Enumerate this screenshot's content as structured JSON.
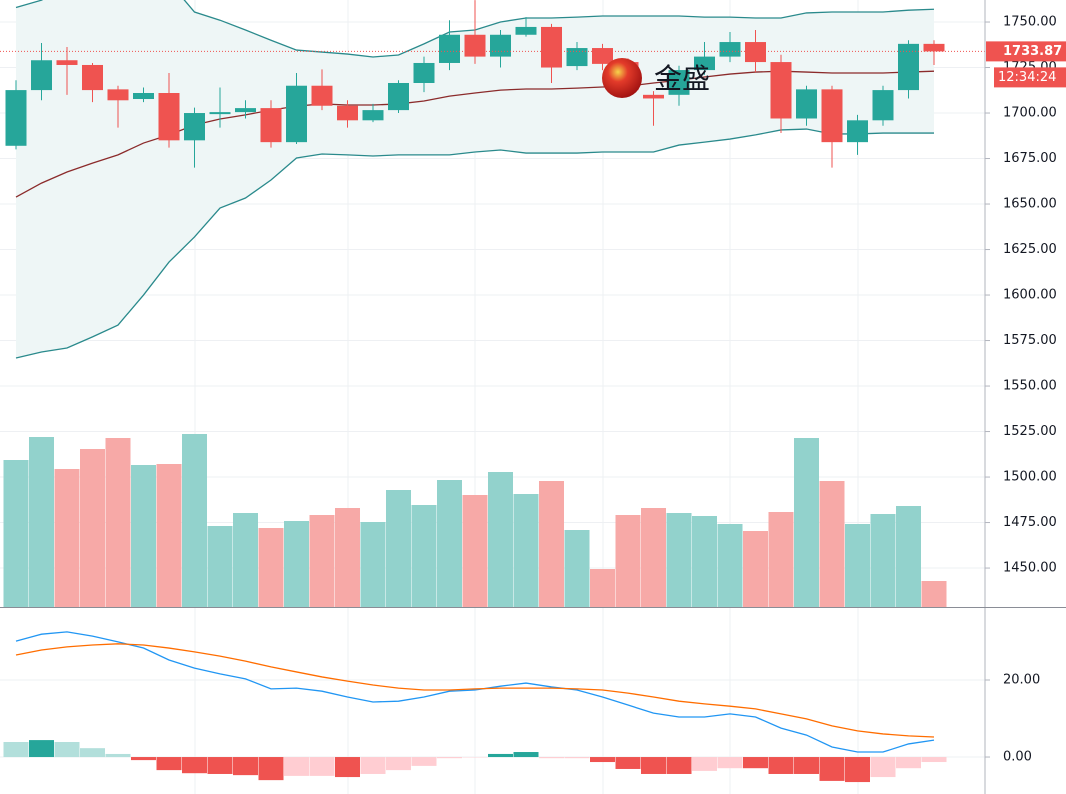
{
  "chart_data": [
    {
      "type": "candlestick",
      "open": [
        1682,
        1712.6,
        1729,
        1726.4,
        1713,
        1707.7,
        1711,
        1685,
        1699.4,
        1700.5,
        1702.7,
        1684,
        1715,
        1704,
        1696,
        1701.6,
        1716.5,
        1727.5,
        1743,
        1731,
        1743,
        1747.3,
        1725.8,
        1735.7,
        1728,
        1710,
        1710,
        1723.6,
        1731,
        1739,
        1728,
        1697,
        1713,
        1684,
        1696,
        1712.6,
        1738
      ],
      "high": [
        1718,
        1738.5,
        1736.3,
        1727.5,
        1715,
        1714,
        1722,
        1703,
        1714,
        1707,
        1707,
        1722,
        1724,
        1707,
        1705,
        1718,
        1731,
        1751,
        1762,
        1745.6,
        1752.7,
        1749,
        1739,
        1738,
        1730,
        1712,
        1726,
        1739,
        1744.5,
        1745.6,
        1732,
        1715,
        1715,
        1699,
        1715,
        1740,
        1740
      ],
      "low": [
        1680,
        1707,
        1710,
        1706,
        1692,
        1706,
        1681,
        1670,
        1692,
        1697,
        1681,
        1683,
        1701.6,
        1692,
        1695,
        1700,
        1711.5,
        1723.6,
        1727,
        1725,
        1742,
        1716.5,
        1723.6,
        1723.6,
        1710,
        1693,
        1704,
        1721,
        1728,
        1722.5,
        1689,
        1693,
        1670,
        1677,
        1693,
        1708,
        1726.4
      ],
      "close": [
        1712.6,
        1729,
        1726.4,
        1712.6,
        1707,
        1711,
        1685,
        1700,
        1700.5,
        1702.7,
        1684,
        1715,
        1704,
        1696,
        1701.6,
        1716.5,
        1727.5,
        1743,
        1731,
        1743,
        1747.3,
        1725,
        1735.7,
        1727,
        1712.6,
        1708,
        1723.6,
        1731,
        1739,
        1728,
        1697,
        1713,
        1684,
        1696,
        1712.6,
        1738,
        1733.87
      ],
      "up_color": "#26a69a",
      "down_color": "#ef5350",
      "bands": {
        "upper": [
          1758,
          1762,
          1770,
          1778,
          1781,
          1780,
          1772,
          1755.5,
          1751,
          1745.6,
          1740,
          1734.6,
          1733.5,
          1732.4,
          1730.8,
          1731.9,
          1738,
          1744.5,
          1745.6,
          1750,
          1752.2,
          1752.2,
          1752.7,
          1753.3,
          1753.3,
          1753.3,
          1753.3,
          1752.7,
          1752.7,
          1752.2,
          1752.2,
          1755,
          1755.5,
          1755.5,
          1755.5,
          1756.5,
          1757
        ],
        "middle": [
          1653.8,
          1661.5,
          1667.6,
          1672.5,
          1677,
          1683.5,
          1688,
          1693.4,
          1696.7,
          1699,
          1701.6,
          1703.8,
          1705,
          1704.4,
          1704.4,
          1705,
          1706.6,
          1709.3,
          1711,
          1712.6,
          1713.2,
          1713.2,
          1713.7,
          1714.3,
          1714.8,
          1716.5,
          1718,
          1719.8,
          1721.4,
          1722.5,
          1723,
          1722.5,
          1722,
          1722,
          1722,
          1722.5,
          1723
        ],
        "lower": [
          1565.4,
          1568.7,
          1570.9,
          1577,
          1583.5,
          1600,
          1618.1,
          1631.9,
          1647.8,
          1653.3,
          1663.2,
          1675.3,
          1677.5,
          1677,
          1676.4,
          1677,
          1677,
          1677,
          1678.6,
          1679.7,
          1678,
          1678,
          1678,
          1678.6,
          1678.6,
          1678.6,
          1682.4,
          1684,
          1685.7,
          1688,
          1690.7,
          1691.2,
          1688.5,
          1688.5,
          1689,
          1689,
          1689
        ],
        "line_color": "#2a8a8c",
        "middle_color": "#8b2b2b",
        "fill": "#eef6f6"
      },
      "volume": {
        "values": [
          147,
          170,
          138,
          158,
          169,
          142,
          143,
          173,
          81,
          94,
          79,
          86,
          92,
          99,
          85,
          117,
          102,
          127,
          112,
          135,
          113,
          126,
          77,
          38,
          92,
          99,
          94,
          91,
          83,
          76,
          95,
          169,
          126,
          83,
          93,
          101,
          26
        ],
        "ylim": [
          0,
          200
        ],
        "up_color": "#92d2cc",
        "down_color": "#f7a9a7"
      },
      "ylim": [
        1428.6,
        1762.1
      ],
      "yticks": [
        {
          "value": 1450,
          "label": "1450.00"
        },
        {
          "value": 1475,
          "label": "1475.00"
        },
        {
          "value": 1500,
          "label": "1500.00"
        },
        {
          "value": 1525,
          "label": "1525.00"
        },
        {
          "value": 1550,
          "label": "1550.00"
        },
        {
          "value": 1575,
          "label": "1575.00"
        },
        {
          "value": 1600,
          "label": "1600.00"
        },
        {
          "value": 1625,
          "label": "1625.00"
        },
        {
          "value": 1650,
          "label": "1650.00"
        },
        {
          "value": 1675,
          "label": "1675.00"
        },
        {
          "value": 1700,
          "label": "1700.00"
        },
        {
          "value": 1725,
          "label": "1725.00"
        },
        {
          "value": 1750,
          "label": "1750.00"
        }
      ],
      "grid": true,
      "last_price": 1733.87,
      "last_price_color": "#ef5350",
      "countdown": "12:34:24",
      "watermark": "金盛"
    },
    {
      "type": "macd",
      "series": [
        {
          "color": "#2196f3",
          "values": [
            30.1,
            31.9,
            32.5,
            31.4,
            29.9,
            28.3,
            25.2,
            23.1,
            21.6,
            20.3,
            17.7,
            17.9,
            17.1,
            15.6,
            14.3,
            14.5,
            15.6,
            17.1,
            17.4,
            18.4,
            19.2,
            18.2,
            17.4,
            15.6,
            13.5,
            11.4,
            10.4,
            10.4,
            11.2,
            10.4,
            7.5,
            5.7,
            2.6,
            1.3,
            1.3,
            3.4,
            4.4
          ]
        },
        {
          "color": "#ff6d00",
          "values": [
            26.5,
            27.8,
            28.6,
            29.1,
            29.4,
            29.1,
            28.3,
            27.3,
            26.2,
            24.9,
            23.4,
            22.1,
            20.8,
            19.7,
            18.7,
            17.9,
            17.4,
            17.4,
            17.7,
            17.9,
            17.9,
            17.9,
            17.7,
            17.4,
            16.6,
            15.6,
            14.5,
            13.8,
            13.2,
            12.5,
            11.2,
            9.9,
            8.1,
            6.8,
            6.0,
            5.5,
            5.2
          ]
        }
      ],
      "histogram": {
        "values": [
          3.9,
          4.4,
          3.9,
          2.3,
          0.8,
          -0.8,
          -3.4,
          -4.2,
          -4.4,
          -4.7,
          -6.0,
          -4.9,
          -4.9,
          -5.2,
          -4.4,
          -3.4,
          -2.3,
          -0.3,
          -0.1,
          0.8,
          1.3,
          -0.3,
          -0.3,
          -1.3,
          -3.1,
          -4.4,
          -4.4,
          -3.6,
          -2.9,
          -2.9,
          -4.4,
          -4.4,
          -6.2,
          -6.5,
          -5.2,
          -2.9,
          -1.3
        ],
        "colors": [
          "#b2dfdb",
          "#26a69a",
          "#b2dfdb",
          "#b2dfdb",
          "#b2dfdb",
          "#ef5350",
          "#ef5350",
          "#ef5350",
          "#ef5350",
          "#ef5350",
          "#ef5350",
          "#ffcdd2",
          "#ffcdd2",
          "#ef5350",
          "#ffcdd2",
          "#ffcdd2",
          "#ffcdd2",
          "#ffcdd2",
          "#ffcdd2",
          "#26a69a",
          "#26a69a",
          "#ffcdd2",
          "#ffcdd2",
          "#ef5350",
          "#ef5350",
          "#ef5350",
          "#ef5350",
          "#ffcdd2",
          "#ffcdd2",
          "#ef5350",
          "#ef5350",
          "#ef5350",
          "#ef5350",
          "#ef5350",
          "#ffcdd2",
          "#ffcdd2",
          "#ffcdd2"
        ]
      },
      "ylim": [
        -9.6,
        38.7
      ],
      "yticks": [
        {
          "value": 0,
          "label": "0.00"
        },
        {
          "value": 20,
          "label": "20.00"
        }
      ],
      "grid": true
    }
  ]
}
